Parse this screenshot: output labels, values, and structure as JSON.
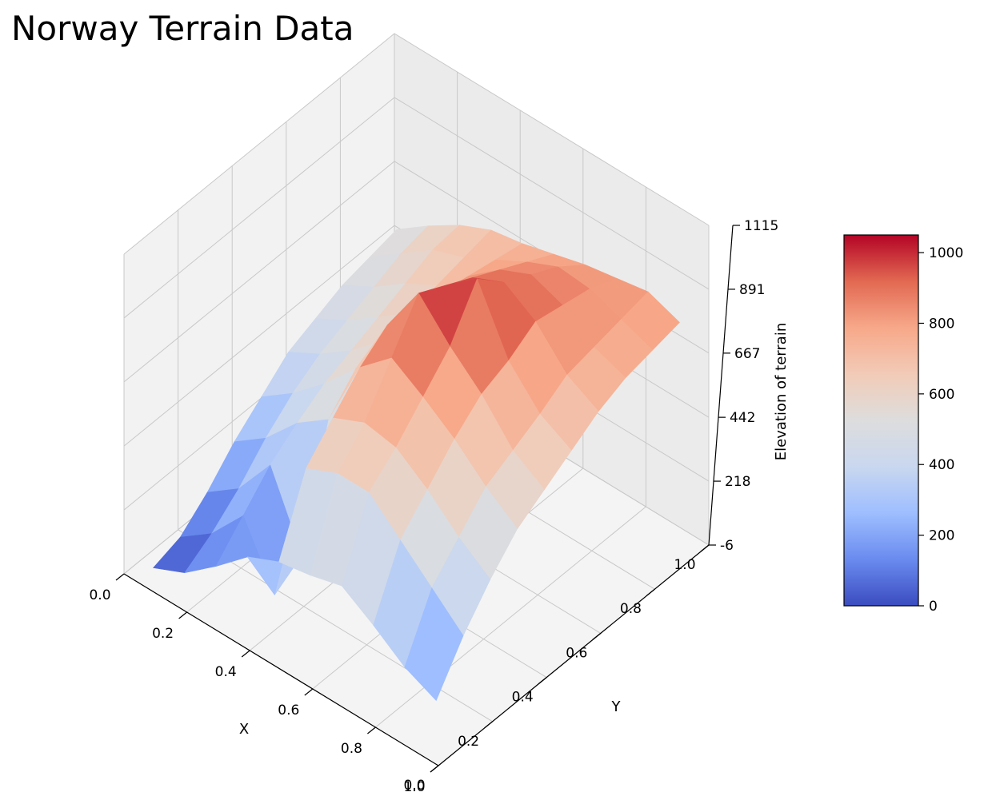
{
  "chart_data": {
    "type": "surface3d",
    "title": "Norway Terrain Data",
    "xlabel": "X",
    "ylabel": "Y",
    "zlabel": "Elevation of terrain",
    "colormap": "coolwarm",
    "xlim": [
      0,
      1
    ],
    "ylim": [
      0,
      1
    ],
    "zlim": [
      -6,
      1115
    ],
    "x_ticks": [
      "0.0",
      "0.2",
      "0.4",
      "0.6",
      "0.8",
      "1.0"
    ],
    "y_ticks": [
      "0.0",
      "0.2",
      "0.4",
      "0.6",
      "0.8",
      "1.0"
    ],
    "z_ticks": [
      "-6",
      "218",
      "442",
      "667",
      "891",
      "1115"
    ],
    "colorbar": {
      "range": [
        0,
        1050
      ],
      "ticks": [
        "0",
        "200",
        "400",
        "600",
        "800",
        "1000"
      ],
      "colors": [
        "#3b4cc0",
        "#6a8bef",
        "#9ebeff",
        "#c9d7ef",
        "#dddddd",
        "#f2cbb7",
        "#f7a889",
        "#e26952",
        "#b40426"
      ]
    },
    "grid": true,
    "surface": {
      "x": [
        0.05,
        0.15,
        0.25,
        0.35,
        0.45,
        0.55,
        0.65,
        0.75,
        0.85,
        0.95
      ],
      "y": [
        0.05,
        0.15,
        0.25,
        0.35,
        0.45,
        0.55,
        0.65,
        0.75,
        0.85,
        0.95
      ],
      "z": [
        [
          10,
          40,
          120,
          220,
          300,
          380,
          420,
          460,
          480,
          500
        ],
        [
          60,
          120,
          200,
          300,
          380,
          440,
          480,
          520,
          560,
          580
        ],
        [
          150,
          250,
          350,
          420,
          480,
          520,
          560,
          600,
          640,
          650
        ],
        [
          250,
          40,
          100,
          500,
          600,
          620,
          640,
          660,
          680,
          700
        ],
        [
          300,
          550,
          650,
          750,
          820,
          800,
          780,
          760,
          740,
          720
        ],
        [
          320,
          600,
          700,
          850,
          1000,
          950,
          900,
          850,
          800,
          750
        ],
        [
          350,
          600,
          680,
          780,
          880,
          1040,
          950,
          900,
          850,
          780
        ],
        [
          280,
          500,
          600,
          700,
          780,
          820,
          880,
          860,
          840,
          800
        ],
        [
          200,
          400,
          500,
          600,
          650,
          700,
          760,
          780,
          800,
          820
        ],
        [
          150,
          300,
          420,
          520,
          580,
          640,
          700,
          740,
          760,
          780
        ]
      ]
    }
  }
}
